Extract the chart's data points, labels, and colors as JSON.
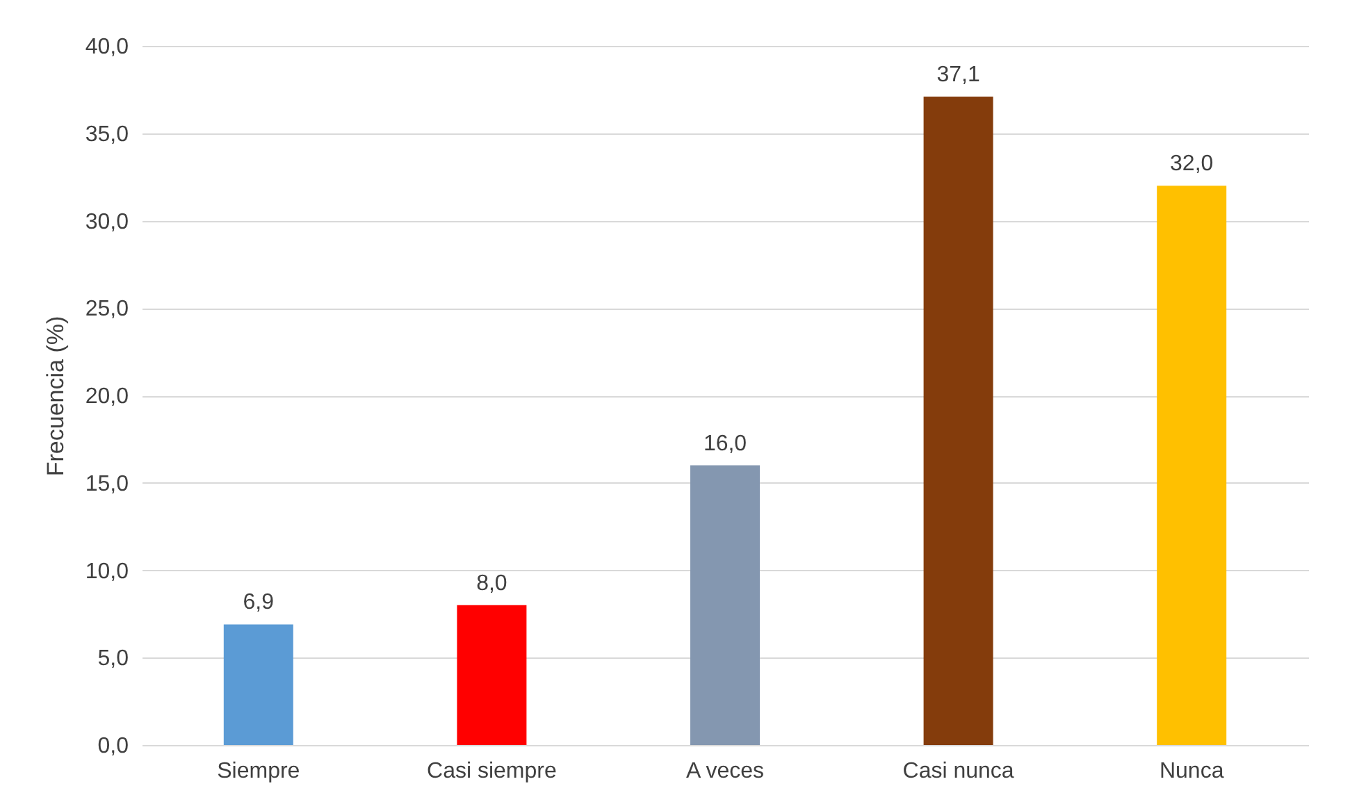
{
  "chart_data": {
    "type": "bar",
    "ylabel": "Frecuencia (%)",
    "categories": [
      "Siempre",
      "Casi siempre",
      "A veces",
      "Casi nunca",
      "Nunca"
    ],
    "values": [
      6.9,
      8.0,
      16.0,
      37.1,
      32.0
    ],
    "colors": [
      "#5b9bd5",
      "#ff0000",
      "#8497b0",
      "#843c0c",
      "#ffc000"
    ],
    "value_labels": [
      "6,9",
      "8,0",
      "16,0",
      "37,1",
      "32,0"
    ],
    "ylim": [
      0,
      40
    ],
    "yticks": [
      {
        "value": 0,
        "label": "0,0"
      },
      {
        "value": 5,
        "label": "5,0"
      },
      {
        "value": 10,
        "label": "10,0"
      },
      {
        "value": 15,
        "label": "15,0"
      },
      {
        "value": 20,
        "label": "20,0"
      },
      {
        "value": 25,
        "label": "25,0"
      },
      {
        "value": 30,
        "label": "30,0"
      },
      {
        "value": 35,
        "label": "35,0"
      },
      {
        "value": 40,
        "label": "40,0"
      }
    ],
    "grid": "y",
    "legend": false
  }
}
